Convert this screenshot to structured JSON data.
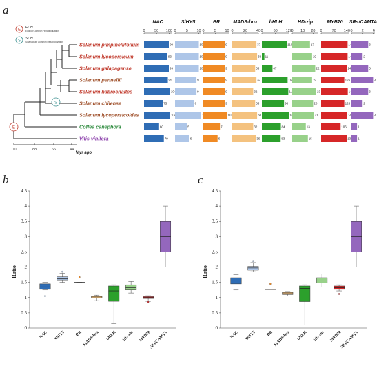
{
  "panels": {
    "a": "a",
    "b": "b",
    "c": "c"
  },
  "legend": {
    "ech_letter": "E",
    "ech_name": "ECH",
    "ech_desc": "Eudicot Common Hexaploidization",
    "sch_letter": "S",
    "sch_name": "SCH",
    "sch_desc": "Solanaceae Common Hexaploidization"
  },
  "tree": {
    "time_ticks": [
      "110",
      "88",
      "66",
      "44"
    ],
    "time_label": "Myr ago",
    "species": [
      {
        "name": "Solanum pimpinellifolium",
        "color": "#c0392b"
      },
      {
        "name": "Solanum lycopersicum",
        "color": "#c0392b"
      },
      {
        "name": "Solanum galapagense",
        "color": "#c0392b"
      },
      {
        "name": "Solanum pennellii",
        "color": "#a0522d"
      },
      {
        "name": "Solanum habrochaites",
        "color": "#c0392b"
      },
      {
        "name": "Solanum chilense",
        "color": "#a0522d"
      },
      {
        "name": "Solanum lycopersicoides",
        "color": "#a0522d"
      },
      {
        "name": "Coffea canephora",
        "color": "#2e8b3e"
      },
      {
        "name": "Vitis vinifera",
        "color": "#8e44ad"
      }
    ]
  },
  "chart_data": [
    {
      "type": "bar",
      "panel": "a",
      "families": [
        {
          "name": "NAC",
          "ticks": [
            "0",
            "50",
            "100"
          ],
          "max": 110,
          "color": "#2f6db5",
          "values": [
            99,
            93,
            99,
            95,
            104,
            75,
            104,
            60,
            79
          ]
        },
        {
          "name": "SlHY5",
          "ticks": [
            "0",
            "5",
            "10"
          ],
          "max": 11,
          "color": "#aec6e8",
          "values": [
            10,
            10,
            10,
            9,
            9,
            8,
            11,
            5,
            6
          ]
        },
        {
          "name": "BR",
          "ticks": [
            "0",
            "5",
            "10"
          ],
          "max": 11,
          "color": "#f08a24",
          "values": [
            9,
            9,
            9,
            9,
            9,
            9,
            10,
            7,
            6
          ]
        },
        {
          "name": "MADS-box",
          "ticks": [
            "0",
            "20",
            "40"
          ],
          "max": 40,
          "color": "#f4c27f",
          "values": [
            37,
            38,
            35,
            37,
            32,
            35,
            38,
            32,
            36
          ]
        },
        {
          "name": "bHLH",
          "ticks": [
            "0",
            "60",
            "120"
          ],
          "max": 122,
          "color": "#2ca02c",
          "values": [
            110,
            11,
            47,
            114,
            117,
            98,
            120,
            84,
            83
          ]
        },
        {
          "name": "HD-zip",
          "ticks": [
            "0",
            "10",
            "20"
          ],
          "max": 25,
          "color": "#98d18a",
          "values": [
            17,
            19,
            22,
            19,
            23,
            20,
            21,
            13,
            15
          ]
        },
        {
          "name": "MYB70",
          "ticks": [
            "0",
            "70",
            "140"
          ],
          "max": 150,
          "color": "#d62728",
          "values": [
            144,
            144,
            140,
            126,
            145,
            126,
            142,
            106,
            139
          ]
        },
        {
          "name": "SRs/CAMTA",
          "ticks": [
            "0",
            "2",
            "4"
          ],
          "max": 4.2,
          "color": "#9467bd",
          "values": [
            3,
            2,
            3,
            4,
            3,
            2,
            4,
            1,
            1
          ]
        }
      ]
    },
    {
      "type": "box",
      "panel": "b",
      "ylabel": "Ratio",
      "ylim": [
        0,
        4.5
      ],
      "yticks": [
        "0",
        "0.5",
        "1",
        "1.5",
        "2",
        "2.5",
        "3",
        "3.5",
        "4",
        "4.5"
      ],
      "categories": [
        "NAC",
        "SlHY5",
        "BR",
        "MADS-box",
        "bHLH",
        "HD-zip",
        "MYB70",
        "SRs/CAMTA"
      ],
      "colors": [
        "#2f6db5",
        "#aec6e8",
        "#f08a24",
        "#f4c27f",
        "#2ca02c",
        "#98d18a",
        "#d62728",
        "#9467bd"
      ],
      "boxes": [
        {
          "min": 1.25,
          "q1": 1.27,
          "median": 1.35,
          "q3": 1.45,
          "max": 1.5,
          "outliers": [
            1.05
          ]
        },
        {
          "min": 1.5,
          "q1": 1.58,
          "median": 1.62,
          "q3": 1.68,
          "max": 1.8,
          "outliers": [
            1.85
          ]
        },
        {
          "min": 1.5,
          "q1": 1.5,
          "median": 1.5,
          "q3": 1.5,
          "max": 1.5,
          "outliers": [
            1.67
          ]
        },
        {
          "min": 0.9,
          "q1": 0.98,
          "median": 1.02,
          "q3": 1.05,
          "max": 1.08,
          "outliers": []
        },
        {
          "min": 0.15,
          "q1": 0.88,
          "median": 1.22,
          "q3": 1.38,
          "max": 1.42,
          "outliers": []
        },
        {
          "min": 1.15,
          "q1": 1.25,
          "median": 1.32,
          "q3": 1.42,
          "max": 1.53,
          "outliers": []
        },
        {
          "min": 0.88,
          "q1": 0.97,
          "median": 1.0,
          "q3": 1.03,
          "max": 1.06,
          "outliers": [
            0.86
          ]
        },
        {
          "min": 2.0,
          "q1": 2.5,
          "median": 3.0,
          "q3": 3.5,
          "max": 4.0,
          "outliers": []
        }
      ]
    },
    {
      "type": "box",
      "panel": "c",
      "ylabel": "Ratio",
      "ylim": [
        0,
        4.5
      ],
      "yticks": [
        "0",
        "0.5",
        "1",
        "1.5",
        "2",
        "2.5",
        "3",
        "3.5",
        "4",
        "4.5"
      ],
      "categories": [
        "NAC",
        "SlHY5",
        "BR",
        "MADS-box",
        "bHLH",
        "HD-zip",
        "MYB70",
        "SRs/CAMTA"
      ],
      "colors": [
        "#2f6db5",
        "#aec6e8",
        "#f08a24",
        "#f4c27f",
        "#2ca02c",
        "#98d18a",
        "#d62728",
        "#9467bd"
      ],
      "boxes": [
        {
          "min": 1.25,
          "q1": 1.45,
          "median": 1.55,
          "q3": 1.65,
          "max": 1.75,
          "outliers": []
        },
        {
          "min": 1.85,
          "q1": 1.9,
          "median": 1.97,
          "q3": 2.02,
          "max": 2.15,
          "outliers": [
            2.2
          ]
        },
        {
          "min": 1.28,
          "q1": 1.28,
          "median": 1.28,
          "q3": 1.28,
          "max": 1.28,
          "outliers": [
            1.45
          ]
        },
        {
          "min": 1.05,
          "q1": 1.1,
          "median": 1.13,
          "q3": 1.17,
          "max": 1.2,
          "outliers": []
        },
        {
          "min": 0.1,
          "q1": 0.87,
          "median": 1.3,
          "q3": 1.38,
          "max": 1.42,
          "outliers": []
        },
        {
          "min": 1.35,
          "q1": 1.48,
          "median": 1.55,
          "q3": 1.65,
          "max": 1.78,
          "outliers": []
        },
        {
          "min": 1.22,
          "q1": 1.27,
          "median": 1.32,
          "q3": 1.38,
          "max": 1.42,
          "outliers": [
            1.12
          ]
        },
        {
          "min": 2.0,
          "q1": 2.5,
          "median": 3.0,
          "q3": 3.5,
          "max": 4.0,
          "outliers": []
        }
      ]
    }
  ]
}
